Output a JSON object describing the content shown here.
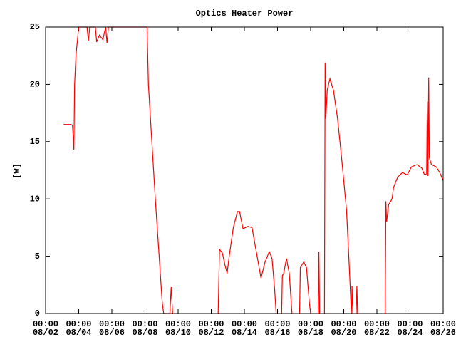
{
  "chart_data": {
    "type": "line",
    "title": "Optics Heater Power",
    "y_label": "[W]",
    "xlim": [
      "08/02 00:00",
      "08/26 00:00"
    ],
    "xticks": [
      {
        "value": "08/02 00:00",
        "label": [
          "00:00",
          "08/02"
        ]
      },
      {
        "value": "08/04 00:00",
        "label": [
          "00:00",
          "08/04"
        ]
      },
      {
        "value": "08/06 00:00",
        "label": [
          "00:00",
          "08/06"
        ]
      },
      {
        "value": "08/08 00:00",
        "label": [
          "00:00",
          "08/08"
        ]
      },
      {
        "value": "08/10 00:00",
        "label": [
          "00:00",
          "08/10"
        ]
      },
      {
        "value": "08/12 00:00",
        "label": [
          "00:00",
          "08/12"
        ]
      },
      {
        "value": "08/14 00:00",
        "label": [
          "00:00",
          "08/14"
        ]
      },
      {
        "value": "08/16 00:00",
        "label": [
          "00:00",
          "08/16"
        ]
      },
      {
        "value": "08/18 00:00",
        "label": [
          "00:00",
          "08/18"
        ]
      },
      {
        "value": "08/20 00:00",
        "label": [
          "00:00",
          "08/20"
        ]
      },
      {
        "value": "08/22 00:00",
        "label": [
          "00:00",
          "08/22"
        ]
      },
      {
        "value": "08/24 00:00",
        "label": [
          "00:00",
          "08/24"
        ]
      },
      {
        "value": "08/26 00:00",
        "label": [
          "00:00",
          "08/26"
        ]
      }
    ],
    "ylim": [
      0,
      25
    ],
    "yticks": [
      0,
      5,
      10,
      15,
      20,
      25
    ],
    "color": "#ff0000",
    "x": [
      "08/03 02:00",
      "08/03 13:00",
      "08/03 15:00",
      "08/03 17:00",
      "08/03 18:00",
      "08/03 20:00",
      "08/04 00:00",
      "08/04 12:00",
      "08/04 14:00",
      "08/04 16:00",
      "08/05 00:00",
      "08/05 02:00",
      "08/05 06:00",
      "08/05 11:00",
      "08/05 15:00",
      "08/05 17:00",
      "08/05 19:00",
      "08/08 03:00",
      "08/08 05:00",
      "08/08 15:00",
      "08/09 01:00",
      "08/09 03:00",
      "08/09 12:00",
      "08/09 14:00",
      "08/09 16:00",
      "08/11 00:00",
      "08/12 10:00",
      "08/12 12:00",
      "08/12 16:00",
      "08/12 20:00",
      "08/12 23:00",
      "08/13 02:00",
      "08/13 08:00",
      "08/13 14:00",
      "08/13 17:00",
      "08/13 22:00",
      "08/14 05:00",
      "08/14 11:00",
      "08/14 17:00",
      "08/15 00:00",
      "08/15 06:00",
      "08/15 12:00",
      "08/15 16:00",
      "08/15 20:00",
      "08/15 22:00",
      "08/16 02:00",
      "08/16 06:00",
      "08/16 07:00",
      "08/16 09:00",
      "08/16 13:00",
      "08/16 17:00",
      "08/16 21:00",
      "08/17 02:00",
      "08/17 08:00",
      "08/17 09:00",
      "08/17 14:00",
      "08/17 18:00",
      "08/17 22:00",
      "08/18 00:00",
      "08/18 06:00",
      "08/18 11:00",
      "08/18 12:00",
      "08/18 13:00",
      "08/18 17:00",
      "08/18 20:00",
      "08/18 21:00",
      "08/18 22:00",
      "08/19 00:00",
      "08/19 04:00",
      "08/19 09:00",
      "08/19 15:00",
      "08/19 21:00",
      "08/20 04:00",
      "08/20 08:00",
      "08/20 11:00",
      "08/20 12:00",
      "08/20 13:00",
      "08/20 16:00",
      "08/20 18:00",
      "08/20 19:00",
      "08/20 20:00",
      "08/21 12:00",
      "08/22 12:00",
      "08/22 13:00",
      "08/22 14:00",
      "08/22 17:00",
      "08/22 22:00",
      "08/23 00:00",
      "08/23 06:00",
      "08/23 13:00",
      "08/23 20:00",
      "08/24 02:00",
      "08/24 10:00",
      "08/24 17:00",
      "08/24 21:00",
      "08/25 00:00",
      "08/25 01:00",
      "08/25 02:00",
      "08/25 03:00",
      "08/25 04:00",
      "08/25 07:00",
      "08/25 14:00",
      "08/25 19:00",
      "08/26 00:00"
    ],
    "values": [
      16.5,
      16.5,
      16.4,
      14.3,
      20,
      22.5,
      25,
      25,
      23.8,
      25,
      25,
      23.7,
      24.3,
      23.9,
      25,
      23.6,
      25,
      25,
      20,
      10,
      1,
      0,
      0,
      2.3,
      0,
      null,
      0,
      5.6,
      5.3,
      4.2,
      3.5,
      5,
      7.5,
      8.9,
      8.9,
      7.4,
      7.6,
      7.5,
      5.5,
      3.1,
      4.5,
      5.4,
      4.8,
      2,
      0,
      null,
      0,
      3.3,
      3.5,
      4.8,
      3.5,
      0,
      null,
      0,
      4,
      4.5,
      4,
      1,
      0,
      null,
      0,
      5.4,
      0,
      null,
      0,
      21.9,
      17,
      19.5,
      20.5,
      19.5,
      17,
      13.5,
      9,
      4,
      0,
      2.4,
      0,
      null,
      0,
      2.4,
      0,
      null,
      0,
      9.8,
      8,
      9.5,
      10,
      11,
      11.9,
      12.3,
      12.1,
      12.8,
      13,
      12.7,
      12.1,
      12.2,
      18.5,
      12,
      20.6,
      13.6,
      13,
      12.8,
      12.3,
      11.6
    ]
  }
}
